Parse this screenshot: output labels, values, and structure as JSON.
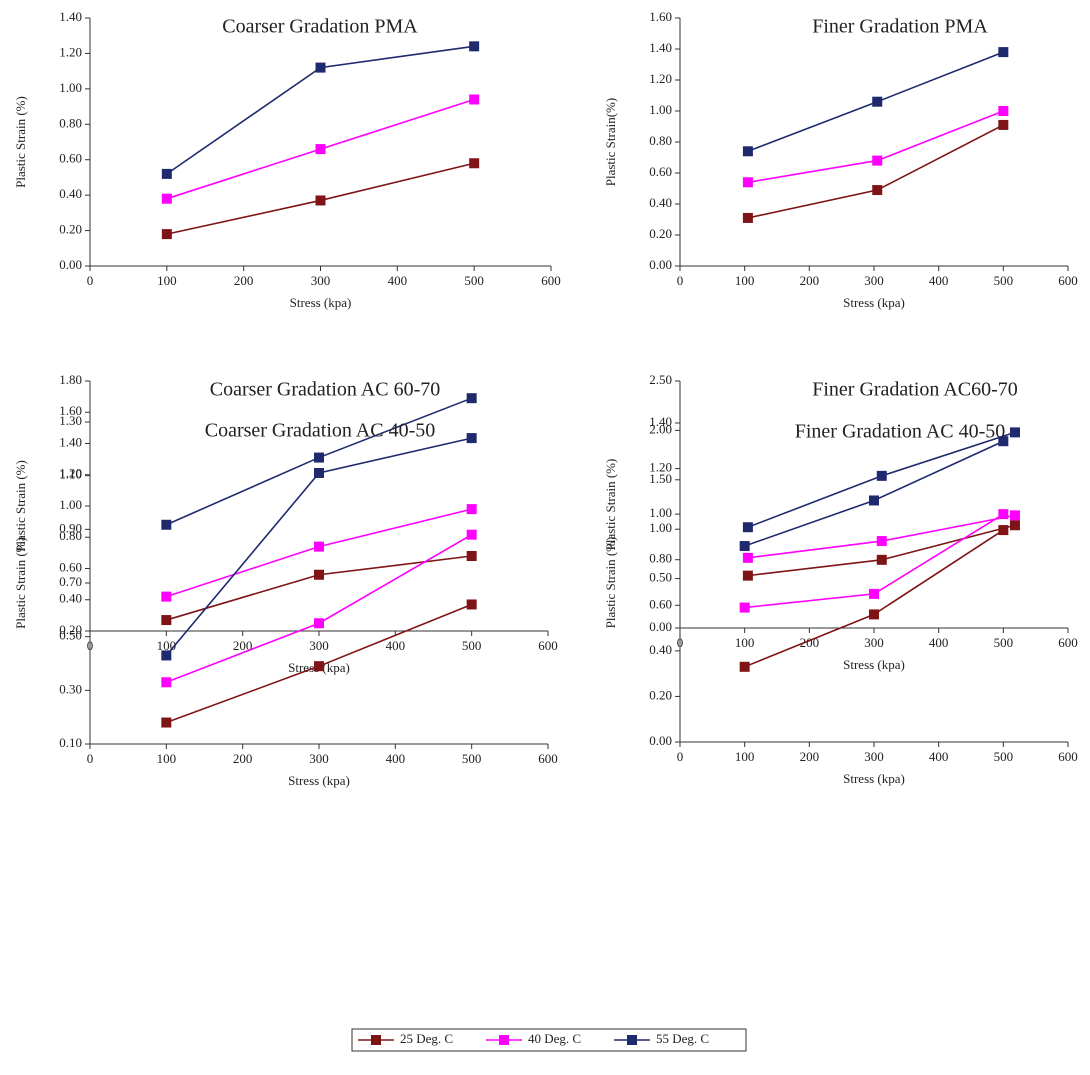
{
  "chart_data": [
    {
      "type": "line",
      "title": "Coarser  Gradation PMA",
      "x_label": "Stress (kpa)",
      "y_label": "Plastic Strain (%)",
      "x": [
        100,
        300,
        500
      ],
      "series": [
        {
          "color": "#7f1416",
          "values": [
            0.18,
            0.37,
            0.58
          ]
        },
        {
          "color": "#ff00ff",
          "values": [
            0.38,
            0.66,
            0.94
          ]
        },
        {
          "color": "#1f2a6e",
          "values": [
            0.52,
            1.12,
            1.24
          ]
        }
      ],
      "xlim": [
        0,
        600
      ],
      "xticks": [
        0,
        100,
        200,
        300,
        400,
        500,
        600
      ],
      "ylim": [
        0,
        1.4
      ],
      "yticks": [
        {
          "value": 0,
          "label": "0.00"
        },
        {
          "value": 0.2,
          "label": "0.20"
        },
        {
          "value": 0.4,
          "label": "0.40"
        },
        {
          "value": 0.6,
          "label": "0.60"
        },
        {
          "value": 0.8,
          "label": "0.80"
        },
        {
          "value": 1.0,
          "label": "1.00"
        },
        {
          "value": 1.2,
          "label": "1.20"
        },
        {
          "value": 1.4,
          "label": "1.40"
        }
      ]
    },
    {
      "type": "line",
      "title": "Finer Gradation  PMA",
      "x_label": "Stress (kpa)",
      "y_label": "Plastic Strain(%)",
      "x": [
        105,
        305,
        500
      ],
      "series": [
        {
          "color": "#7f1416",
          "values": [
            0.31,
            0.49,
            0.91
          ]
        },
        {
          "color": "#ff00ff",
          "values": [
            0.54,
            0.68,
            1.0
          ]
        },
        {
          "color": "#1f2a6e",
          "values": [
            0.74,
            1.06,
            1.38
          ]
        }
      ],
      "xlim": [
        0,
        600
      ],
      "xticks": [
        0,
        100,
        200,
        300,
        400,
        500,
        600
      ],
      "ylim": [
        0,
        1.6
      ],
      "yticks": [
        {
          "value": 0,
          "label": "0.00"
        },
        {
          "value": 0.2,
          "label": "0.20"
        },
        {
          "value": 0.4,
          "label": "0.40"
        },
        {
          "value": 0.6,
          "label": "0.60"
        },
        {
          "value": 0.8,
          "label": "0.80"
        },
        {
          "value": 1.0,
          "label": "1.00"
        },
        {
          "value": 1.2,
          "label": "1.20"
        },
        {
          "value": 1.4,
          "label": "1.40"
        },
        {
          "value": 1.6,
          "label": "1.60"
        }
      ]
    },
    {
      "type": "line",
      "title": "Coarser  Gradation  AC 60-70",
      "x_label": "Stress (kpa)",
      "y_label": "Plastic Strain (%)",
      "x": [
        100,
        300,
        500
      ],
      "series": [
        {
          "color": "#7f1416",
          "values": [
            0.27,
            0.56,
            0.68
          ]
        },
        {
          "color": "#ff00ff",
          "values": [
            0.42,
            0.74,
            0.98
          ]
        },
        {
          "color": "#1f2a6e",
          "values": [
            0.88,
            1.31,
            1.69
          ]
        }
      ],
      "xlim": [
        0,
        600
      ],
      "xticks": [
        0,
        100,
        200,
        300,
        400,
        500,
        600
      ],
      "ylim": [
        0.2,
        1.8
      ],
      "yticks": [
        {
          "value": 0.2,
          "label": "0.20"
        },
        {
          "value": 0.4,
          "label": "0.40"
        },
        {
          "value": 0.6,
          "label": "0.60"
        },
        {
          "value": 0.8,
          "label": "0.80"
        },
        {
          "value": 1.0,
          "label": "1.00"
        },
        {
          "value": 1.2,
          "label": "1.20"
        },
        {
          "value": 1.4,
          "label": "1.40"
        },
        {
          "value": 1.6,
          "label": "1.60"
        },
        {
          "value": 1.8,
          "label": "1.80"
        }
      ]
    },
    {
      "type": "line",
      "title": "Finer Gradation  AC60-70",
      "x_label": "Stress (kpa)",
      "y_label": "Plastic Strain (%)",
      "x": [
        105,
        312,
        518
      ],
      "series": [
        {
          "color": "#7f1416",
          "values": [
            0.53,
            0.69,
            1.04
          ]
        },
        {
          "color": "#ff00ff",
          "values": [
            0.71,
            0.88,
            1.14
          ]
        },
        {
          "color": "#1f2a6e",
          "values": [
            1.02,
            1.54,
            1.98
          ]
        }
      ],
      "xlim": [
        0,
        600
      ],
      "xticks": [
        0,
        100,
        200,
        300,
        400,
        500,
        600
      ],
      "ylim": [
        0,
        2.5
      ],
      "yticks": [
        {
          "value": 0,
          "label": "0.00"
        },
        {
          "value": 0.5,
          "label": "0.50"
        },
        {
          "value": 1.0,
          "label": "1.00"
        },
        {
          "value": 1.5,
          "label": "1.50"
        },
        {
          "value": 2.0,
          "label": "2.00"
        },
        {
          "value": 2.5,
          "label": "2.50"
        }
      ]
    },
    {
      "type": "line",
      "title": "Coarser  Gradation  AC 40-50",
      "x_label": "Stress (kpa)",
      "y_label": "Plastic Strain (%)",
      "x": [
        100,
        300,
        500
      ],
      "series": [
        {
          "color": "#7f1416",
          "values": [
            0.18,
            0.39,
            0.62
          ]
        },
        {
          "color": "#ff00ff",
          "values": [
            0.33,
            0.55,
            0.88
          ]
        },
        {
          "color": "#1f2a6e",
          "values": [
            0.43,
            1.11,
            1.24
          ]
        }
      ],
      "xlim": [
        0,
        600
      ],
      "xticks": [
        0,
        100,
        200,
        300,
        400,
        500,
        600
      ],
      "ylim": [
        0.1,
        1.3
      ],
      "yticks": [
        {
          "value": 0.1,
          "label": "0.10"
        },
        {
          "value": 0.3,
          "label": "0.30"
        },
        {
          "value": 0.5,
          "label": "0.50"
        },
        {
          "value": 0.7,
          "label": "0.70"
        },
        {
          "value": 0.9,
          "label": "0.90"
        },
        {
          "value": 1.1,
          "label": "1.10"
        },
        {
          "value": 1.3,
          "label": "1.30"
        }
      ]
    },
    {
      "type": "line",
      "title": "Finer Gradation  AC 40-50",
      "x_label": "Stress (kpa)",
      "y_label": "Plastic Strain (%)",
      "x": [
        100,
        300,
        500
      ],
      "series": [
        {
          "color": "#7f1416",
          "values": [
            0.33,
            0.56,
            0.93
          ]
        },
        {
          "color": "#ff00ff",
          "values": [
            0.59,
            0.65,
            1.0
          ]
        },
        {
          "color": "#1f2a6e",
          "values": [
            0.86,
            1.06,
            1.32
          ]
        }
      ],
      "xlim": [
        0,
        600
      ],
      "xticks": [
        0,
        100,
        200,
        300,
        400,
        500,
        600
      ],
      "ylim": [
        0,
        1.4
      ],
      "yticks": [
        {
          "value": 0,
          "label": "0.00"
        },
        {
          "value": 0.2,
          "label": "0.20"
        },
        {
          "value": 0.4,
          "label": "0.40"
        },
        {
          "value": 0.6,
          "label": "0.60"
        },
        {
          "value": 0.8,
          "label": "0.80"
        },
        {
          "value": 1.0,
          "label": "1.00"
        },
        {
          "value": 1.2,
          "label": "1.20"
        },
        {
          "value": 1.4,
          "label": "1.40"
        }
      ]
    }
  ],
  "legend": [
    {
      "name": "25 Deg. C",
      "color": "#7f1416"
    },
    {
      "name": "40 Deg. C",
      "color": "#ff00ff"
    },
    {
      "name": "55 Deg. C",
      "color": "#1f2a6e"
    }
  ]
}
